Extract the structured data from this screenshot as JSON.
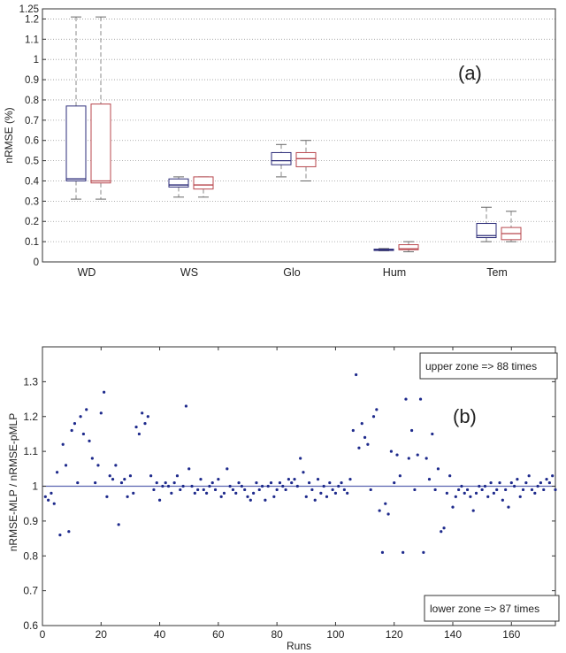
{
  "chart_data": [
    {
      "type": "box",
      "panel_label": "(a)",
      "ylabel": "nRMSE (%)",
      "xlabel": "",
      "ylim": [
        0,
        1.25
      ],
      "yticks": [
        0,
        0.1,
        0.2,
        0.3,
        0.4,
        0.5,
        0.6,
        0.7,
        0.8,
        0.9,
        1,
        1.1,
        1.2,
        1.25
      ],
      "grid": "horizontal-dotted",
      "categories": [
        "WD",
        "WS",
        "Glo",
        "Hum",
        "Tem"
      ],
      "series": [
        {
          "color": "#2b2b78",
          "boxes": [
            {
              "min": 0.31,
              "q1": 0.4,
              "median": 0.41,
              "q3": 0.77,
              "max": 1.21
            },
            {
              "min": 0.32,
              "q1": 0.37,
              "median": 0.38,
              "q3": 0.41,
              "max": 0.42
            },
            {
              "min": 0.42,
              "q1": 0.48,
              "median": 0.5,
              "q3": 0.54,
              "max": 0.58
            },
            {
              "min": 0.055,
              "q1": 0.058,
              "median": 0.06,
              "q3": 0.063,
              "max": 0.066
            },
            {
              "min": 0.1,
              "q1": 0.12,
              "median": 0.13,
              "q3": 0.19,
              "max": 0.27
            }
          ]
        },
        {
          "color": "#b8474e",
          "boxes": [
            {
              "min": 0.31,
              "q1": 0.39,
              "median": 0.4,
              "q3": 0.78,
              "max": 1.21
            },
            {
              "min": 0.32,
              "q1": 0.36,
              "median": 0.38,
              "q3": 0.42,
              "max": 0.42
            },
            {
              "min": 0.4,
              "q1": 0.47,
              "median": 0.51,
              "q3": 0.54,
              "max": 0.6
            },
            {
              "min": 0.05,
              "q1": 0.06,
              "median": 0.065,
              "q3": 0.085,
              "max": 0.1
            },
            {
              "min": 0.1,
              "q1": 0.11,
              "median": 0.14,
              "q3": 0.17,
              "max": 0.25
            }
          ]
        }
      ]
    },
    {
      "type": "scatter",
      "panel_label": "(b)",
      "xlabel": "Runs",
      "ylabel": "nRMSE-MLP / nRMSE-pMLP",
      "xlim": [
        0,
        175
      ],
      "ylim": [
        0.6,
        1.4
      ],
      "xticks": [
        0,
        20,
        40,
        60,
        80,
        100,
        120,
        140,
        160
      ],
      "yticks": [
        0.6,
        0.7,
        0.8,
        0.9,
        1,
        1.1,
        1.2,
        1.3
      ],
      "reference_line_y": 1,
      "point_color": "#1e2a8c",
      "reference_line_color": "#5a64b0",
      "annotations": [
        "upper zone => 88 times",
        "lower zone => 87 times"
      ],
      "x": [
        1,
        2,
        3,
        4,
        5,
        6,
        7,
        8,
        9,
        10,
        11,
        12,
        13,
        14,
        15,
        16,
        17,
        18,
        19,
        20,
        21,
        22,
        23,
        24,
        25,
        26,
        27,
        28,
        29,
        30,
        31,
        32,
        33,
        34,
        35,
        36,
        37,
        38,
        39,
        40,
        41,
        42,
        43,
        44,
        45,
        46,
        47,
        48,
        49,
        50,
        51,
        52,
        53,
        54,
        55,
        56,
        57,
        58,
        59,
        60,
        61,
        62,
        63,
        64,
        65,
        66,
        67,
        68,
        69,
        70,
        71,
        72,
        73,
        74,
        75,
        76,
        77,
        78,
        79,
        80,
        81,
        82,
        83,
        84,
        85,
        86,
        87,
        88,
        89,
        90,
        91,
        92,
        93,
        94,
        95,
        96,
        97,
        98,
        99,
        100,
        101,
        102,
        103,
        104,
        105,
        106,
        107,
        108,
        109,
        110,
        111,
        112,
        113,
        114,
        115,
        116,
        117,
        118,
        119,
        120,
        121,
        122,
        123,
        124,
        125,
        126,
        127,
        128,
        129,
        130,
        131,
        132,
        133,
        134,
        135,
        136,
        137,
        138,
        139,
        140,
        141,
        142,
        143,
        144,
        145,
        146,
        147,
        148,
        149,
        150,
        151,
        152,
        153,
        154,
        155,
        156,
        157,
        158,
        159,
        160,
        161,
        162,
        163,
        164,
        165,
        166,
        167,
        168,
        169,
        170,
        171,
        172,
        173,
        174,
        175
      ],
      "y": [
        0.97,
        0.96,
        0.98,
        0.95,
        1.04,
        0.86,
        1.12,
        1.06,
        0.87,
        1.16,
        1.18,
        1.01,
        1.2,
        1.15,
        1.22,
        1.13,
        1.08,
        1.01,
        1.06,
        1.21,
        1.27,
        0.97,
        1.03,
        1.02,
        1.06,
        0.89,
        1.01,
        1.02,
        0.97,
        1.03,
        0.98,
        1.17,
        1.15,
        1.21,
        1.18,
        1.2,
        1.03,
        0.99,
        1.01,
        0.96,
        1.0,
        1.01,
        1.0,
        0.98,
        1.01,
        1.03,
        0.99,
        1.0,
        1.23,
        1.05,
        1.0,
        0.98,
        0.99,
        1.02,
        0.99,
        0.98,
        1.0,
        1.01,
        0.99,
        1.02,
        0.97,
        0.98,
        1.05,
        1.0,
        0.99,
        0.98,
        1.01,
        1.0,
        0.99,
        0.97,
        0.96,
        0.98,
        1.01,
        0.99,
        1.0,
        0.96,
        1.0,
        1.01,
        0.97,
        0.99,
        1.01,
        1.0,
        0.99,
        1.02,
        1.01,
        1.02,
        1.0,
        1.08,
        1.04,
        0.97,
        1.01,
        0.99,
        0.96,
        1.02,
        0.98,
        1.0,
        0.97,
        1.01,
        0.99,
        0.98,
        1.0,
        1.01,
        0.99,
        0.98,
        1.02,
        1.16,
        1.32,
        1.11,
        1.18,
        1.14,
        1.12,
        0.99,
        1.2,
        1.22,
        0.93,
        0.81,
        0.95,
        0.92,
        1.1,
        1.01,
        1.09,
        1.03,
        0.81,
        1.25,
        1.08,
        1.16,
        0.99,
        1.09,
        1.25,
        0.81,
        1.08,
        1.02,
        1.15,
        0.99,
        1.05,
        0.87,
        0.88,
        0.98,
        1.03,
        0.94,
        0.97,
        0.99,
        1.0,
        0.98,
        0.99,
        0.97,
        0.93,
        0.98,
        1.0,
        0.99,
        1.0,
        0.97,
        1.01,
        0.98,
        0.99,
        1.01,
        0.96,
        0.99,
        0.94,
        1.01,
        1.0,
        1.02,
        0.97,
        0.99,
        1.01,
        1.03,
        0.99,
        0.98,
        1.0,
        1.01,
        0.99,
        1.02,
        1.01,
        1.03,
        0.99
      ]
    }
  ]
}
